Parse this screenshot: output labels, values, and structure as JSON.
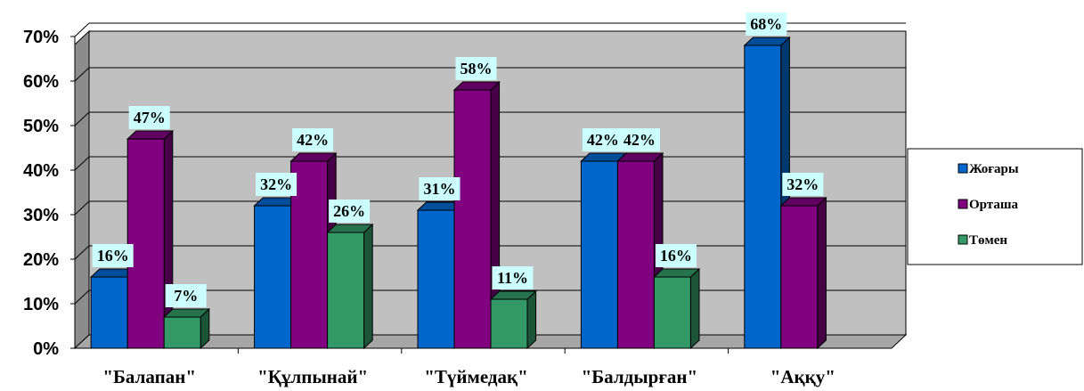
{
  "chart_data": {
    "type": "bar",
    "title": "",
    "xlabel": "",
    "ylabel": "",
    "ylim": [
      0,
      70
    ],
    "y_ticks": [
      "0%",
      "10%",
      "20%",
      "30%",
      "40%",
      "50%",
      "60%",
      "70%"
    ],
    "grid": true,
    "legend_position": "right",
    "categories": [
      "\"Балапан\"",
      "\"Құлпынай\"",
      "\"Түймедақ\"",
      "\"Балдырған\"",
      "\"Аққу\""
    ],
    "series": [
      {
        "name": "Жоғары",
        "color": "#0066CC",
        "values": [
          16,
          32,
          31,
          42,
          68
        ],
        "labels": [
          "16%",
          "32%",
          "31%",
          "42%",
          "68%"
        ]
      },
      {
        "name": "Орташа",
        "color": "#800080",
        "values": [
          47,
          42,
          58,
          42,
          32
        ],
        "labels": [
          "47%",
          "42%",
          "58%",
          "42%",
          "32%"
        ]
      },
      {
        "name": "Төмен",
        "color": "#339966",
        "values": [
          7,
          26,
          11,
          16,
          null
        ],
        "labels": [
          "7%",
          "26%",
          "11%",
          "16%",
          null
        ]
      }
    ]
  }
}
